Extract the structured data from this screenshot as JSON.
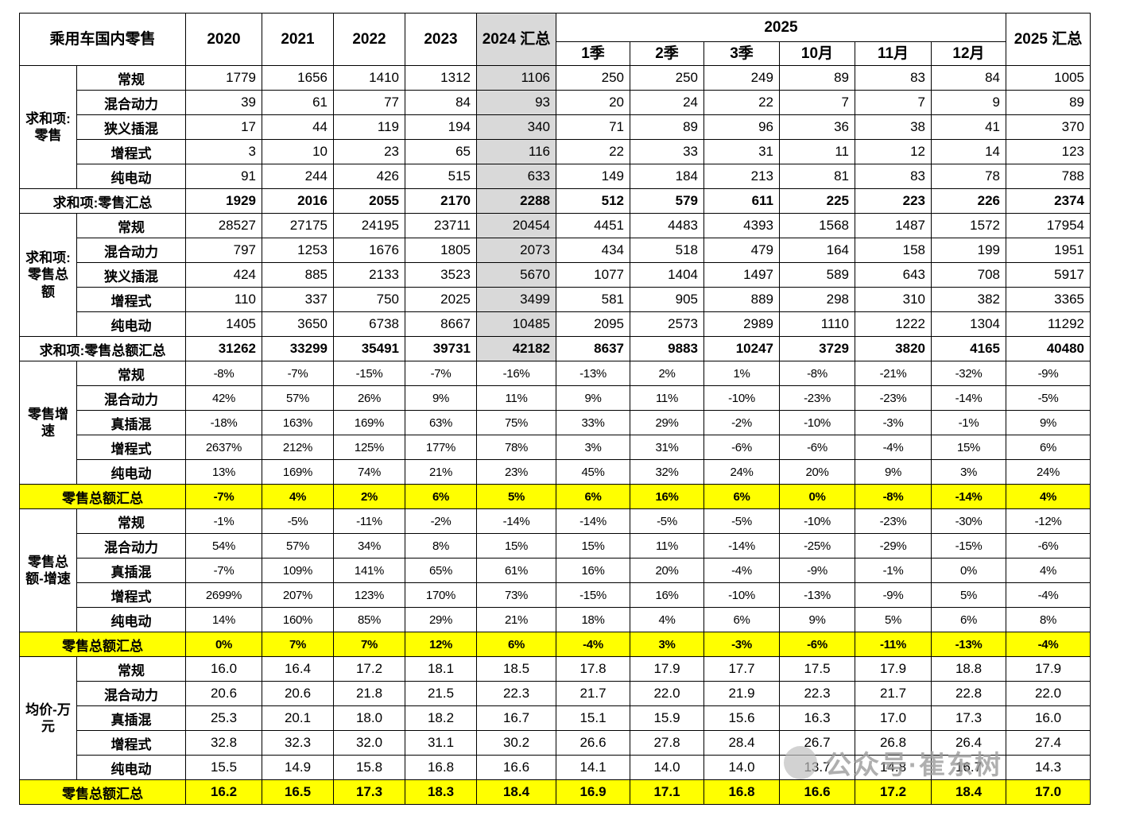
{
  "colors": {
    "highlight": "#ffff00",
    "header_gray": "#d9d9d9",
    "watermark_gray": "#9c9c9c"
  },
  "watermark": {
    "text": "公众号·崔东树"
  },
  "chart_data": {
    "type": "table",
    "title": "乘用车国内零售",
    "header": {
      "corner": "乘用车国内零售",
      "years": [
        "2020",
        "2021",
        "2022",
        "2023"
      ],
      "total2024": "2024 汇总",
      "group2025": "2025",
      "sub2025": [
        "1季",
        "2季",
        "3季",
        "10月",
        "11月",
        "12月"
      ],
      "total2025": "2025 汇总"
    },
    "columns": [
      "2020",
      "2021",
      "2022",
      "2023",
      "2024 汇总",
      "2025 1季",
      "2025 2季",
      "2025 3季",
      "2025 10月",
      "2025 11月",
      "2025 12月",
      "2025 汇总"
    ],
    "groups": [
      {
        "label": "求和项:零售",
        "align": "right",
        "gray2024": true,
        "small": false,
        "rows": [
          {
            "label": "常规",
            "values": [
              1779,
              1656,
              1410,
              1312,
              1106,
              250,
              250,
              249,
              89,
              83,
              84,
              1005
            ]
          },
          {
            "label": "混合动力",
            "values": [
              39,
              61,
              77,
              84,
              93,
              20,
              24,
              22,
              7,
              7,
              9,
              89
            ]
          },
          {
            "label": "狭义插混",
            "values": [
              17,
              44,
              119,
              194,
              340,
              71,
              89,
              96,
              36,
              38,
              41,
              370
            ]
          },
          {
            "label": "增程式",
            "values": [
              3,
              10,
              23,
              65,
              116,
              22,
              33,
              31,
              11,
              12,
              14,
              123
            ]
          },
          {
            "label": "纯电动",
            "values": [
              91,
              244,
              426,
              515,
              633,
              149,
              184,
              213,
              81,
              83,
              78,
              788
            ]
          }
        ],
        "total": {
          "label": "求和项:零售汇总",
          "highlight": false,
          "values": [
            1929,
            2016,
            2055,
            2170,
            2288,
            512,
            579,
            611,
            225,
            223,
            226,
            2374
          ]
        }
      },
      {
        "label": "求和项:零售总额",
        "align": "right",
        "gray2024": true,
        "small": false,
        "rows": [
          {
            "label": "常规",
            "values": [
              28527,
              27175,
              24195,
              23711,
              20454,
              4451,
              4483,
              4393,
              1568,
              1487,
              1572,
              17954
            ]
          },
          {
            "label": "混合动力",
            "values": [
              797,
              1253,
              1676,
              1805,
              2073,
              434,
              518,
              479,
              164,
              158,
              199,
              1951
            ]
          },
          {
            "label": "狭义插混",
            "values": [
              424,
              885,
              2133,
              3523,
              5670,
              1077,
              1404,
              1497,
              589,
              643,
              708,
              5917
            ]
          },
          {
            "label": "增程式",
            "values": [
              110,
              337,
              750,
              2025,
              3499,
              581,
              905,
              889,
              298,
              310,
              382,
              3365
            ]
          },
          {
            "label": "纯电动",
            "values": [
              1405,
              3650,
              6738,
              8667,
              10485,
              2095,
              2573,
              2989,
              1110,
              1222,
              1304,
              11292
            ]
          }
        ],
        "total": {
          "label": "求和项:零售总额汇总",
          "highlight": false,
          "values": [
            31262,
            33299,
            35491,
            39731,
            42182,
            8637,
            9883,
            10247,
            3729,
            3820,
            4165,
            40480
          ]
        }
      },
      {
        "label": "零售增速",
        "align": "center",
        "gray2024": false,
        "small": true,
        "rows": [
          {
            "label": "常规",
            "values": [
              "-8%",
              "-7%",
              "-15%",
              "-7%",
              "-16%",
              "-13%",
              "2%",
              "1%",
              "-8%",
              "-21%",
              "-32%",
              "-9%"
            ]
          },
          {
            "label": "混合动力",
            "values": [
              "42%",
              "57%",
              "26%",
              "9%",
              "11%",
              "9%",
              "11%",
              "-10%",
              "-23%",
              "-23%",
              "-14%",
              "-5%"
            ]
          },
          {
            "label": "真插混",
            "values": [
              "-18%",
              "163%",
              "169%",
              "63%",
              "75%",
              "33%",
              "29%",
              "-2%",
              "-10%",
              "-3%",
              "-1%",
              "9%"
            ]
          },
          {
            "label": "增程式",
            "values": [
              "2637%",
              "212%",
              "125%",
              "177%",
              "78%",
              "3%",
              "31%",
              "-6%",
              "-6%",
              "-4%",
              "15%",
              "6%"
            ]
          },
          {
            "label": "纯电动",
            "values": [
              "13%",
              "169%",
              "74%",
              "21%",
              "23%",
              "45%",
              "32%",
              "24%",
              "20%",
              "9%",
              "3%",
              "24%"
            ]
          }
        ],
        "total": {
          "label": "零售总额汇总",
          "highlight": true,
          "values": [
            "-7%",
            "4%",
            "2%",
            "6%",
            "5%",
            "6%",
            "16%",
            "6%",
            "0%",
            "-8%",
            "-14%",
            "4%"
          ]
        }
      },
      {
        "label": "零售总额-增速",
        "align": "center",
        "gray2024": false,
        "small": true,
        "rows": [
          {
            "label": "常规",
            "values": [
              "-1%",
              "-5%",
              "-11%",
              "-2%",
              "-14%",
              "-14%",
              "-5%",
              "-5%",
              "-10%",
              "-23%",
              "-30%",
              "-12%"
            ]
          },
          {
            "label": "混合动力",
            "values": [
              "54%",
              "57%",
              "34%",
              "8%",
              "15%",
              "15%",
              "11%",
              "-14%",
              "-25%",
              "-29%",
              "-15%",
              "-6%"
            ]
          },
          {
            "label": "真插混",
            "values": [
              "-7%",
              "109%",
              "141%",
              "65%",
              "61%",
              "16%",
              "20%",
              "-4%",
              "-9%",
              "-1%",
              "0%",
              "4%"
            ]
          },
          {
            "label": "增程式",
            "values": [
              "2699%",
              "207%",
              "123%",
              "170%",
              "73%",
              "-15%",
              "16%",
              "-10%",
              "-13%",
              "-9%",
              "5%",
              "-4%"
            ]
          },
          {
            "label": "纯电动",
            "values": [
              "14%",
              "160%",
              "85%",
              "29%",
              "21%",
              "18%",
              "4%",
              "6%",
              "9%",
              "5%",
              "6%",
              "8%"
            ]
          }
        ],
        "total": {
          "label": "零售总额汇总",
          "highlight": true,
          "values": [
            "0%",
            "7%",
            "7%",
            "12%",
            "6%",
            "-4%",
            "3%",
            "-3%",
            "-6%",
            "-11%",
            "-13%",
            "-4%"
          ]
        }
      },
      {
        "label": "均价-万元",
        "align": "center",
        "gray2024": false,
        "small": false,
        "rows": [
          {
            "label": "常规",
            "values": [
              "16.0",
              "16.4",
              "17.2",
              "18.1",
              "18.5",
              "17.8",
              "17.9",
              "17.7",
              "17.5",
              "17.9",
              "18.8",
              "17.9"
            ]
          },
          {
            "label": "混合动力",
            "values": [
              "20.6",
              "20.6",
              "21.8",
              "21.5",
              "22.3",
              "21.7",
              "22.0",
              "21.9",
              "22.3",
              "21.7",
              "22.8",
              "22.0"
            ]
          },
          {
            "label": "真插混",
            "values": [
              "25.3",
              "20.1",
              "18.0",
              "18.2",
              "16.7",
              "15.1",
              "15.9",
              "15.6",
              "16.3",
              "17.0",
              "17.3",
              "16.0"
            ]
          },
          {
            "label": "增程式",
            "values": [
              "32.8",
              "32.3",
              "32.0",
              "31.1",
              "30.2",
              "26.6",
              "27.8",
              "28.4",
              "26.7",
              "26.8",
              "26.4",
              "27.4"
            ]
          },
          {
            "label": "纯电动",
            "values": [
              "15.5",
              "14.9",
              "15.8",
              "16.8",
              "16.6",
              "14.1",
              "14.0",
              "14.0",
              "13.7",
              "14.8",
              "16.7",
              "14.3"
            ]
          }
        ],
        "total": {
          "label": "零售总额汇总",
          "highlight": true,
          "values": [
            "16.2",
            "16.5",
            "17.3",
            "18.3",
            "18.4",
            "16.9",
            "17.1",
            "16.8",
            "16.6",
            "17.2",
            "18.4",
            "17.0"
          ]
        }
      }
    ]
  }
}
